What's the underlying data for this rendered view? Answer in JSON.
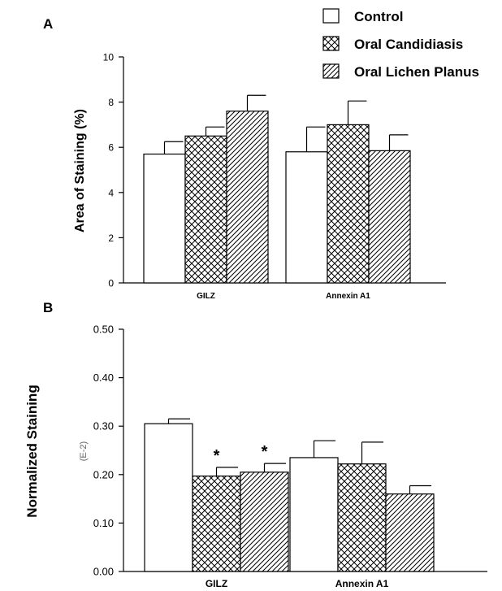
{
  "legend": {
    "items": [
      {
        "label": "Control",
        "pattern": "none"
      },
      {
        "label": "Oral Candidiasis",
        "pattern": "crosshatch"
      },
      {
        "label": "Oral Lichen Planus",
        "pattern": "diagonal"
      }
    ]
  },
  "chart_data": [
    {
      "panel": "A",
      "type": "bar",
      "ylabel": "Area of Staining (%)",
      "ylim": [
        0,
        10
      ],
      "yticks": [
        "0",
        "2",
        "4",
        "6",
        "8",
        "10"
      ],
      "categories": [
        "GILZ",
        "Annexin A1"
      ],
      "series": [
        {
          "name": "Control",
          "values": [
            5.7,
            5.8
          ],
          "errors": [
            0.55,
            1.1
          ]
        },
        {
          "name": "Oral Candidiasis",
          "values": [
            6.5,
            7.0
          ],
          "errors": [
            0.4,
            1.05
          ]
        },
        {
          "name": "Oral Lichen Planus",
          "values": [
            7.6,
            5.85
          ],
          "errors": [
            0.7,
            0.7
          ]
        }
      ],
      "grid": false
    },
    {
      "panel": "B",
      "type": "bar",
      "ylabel": "Normalized Staining",
      "yunit": "(E-2)",
      "ylim": [
        0,
        0.5
      ],
      "yticks": [
        "0.00",
        "0.10",
        "0.20",
        "0.30",
        "0.40",
        "0.50"
      ],
      "categories": [
        "GILZ",
        "Annexin A1"
      ],
      "series": [
        {
          "name": "Control",
          "values": [
            0.305,
            0.235
          ],
          "errors": [
            0.01,
            0.035
          ]
        },
        {
          "name": "Oral Candidiasis",
          "values": [
            0.197,
            0.222
          ],
          "errors": [
            0.018,
            0.045
          ]
        },
        {
          "name": "Oral Lichen Planus",
          "values": [
            0.205,
            0.16
          ],
          "errors": [
            0.018,
            0.017
          ]
        }
      ],
      "annotations": [
        {
          "text": "*",
          "category": 0,
          "series": 1
        },
        {
          "text": "*",
          "category": 0,
          "series": 2
        }
      ],
      "grid": false
    }
  ]
}
